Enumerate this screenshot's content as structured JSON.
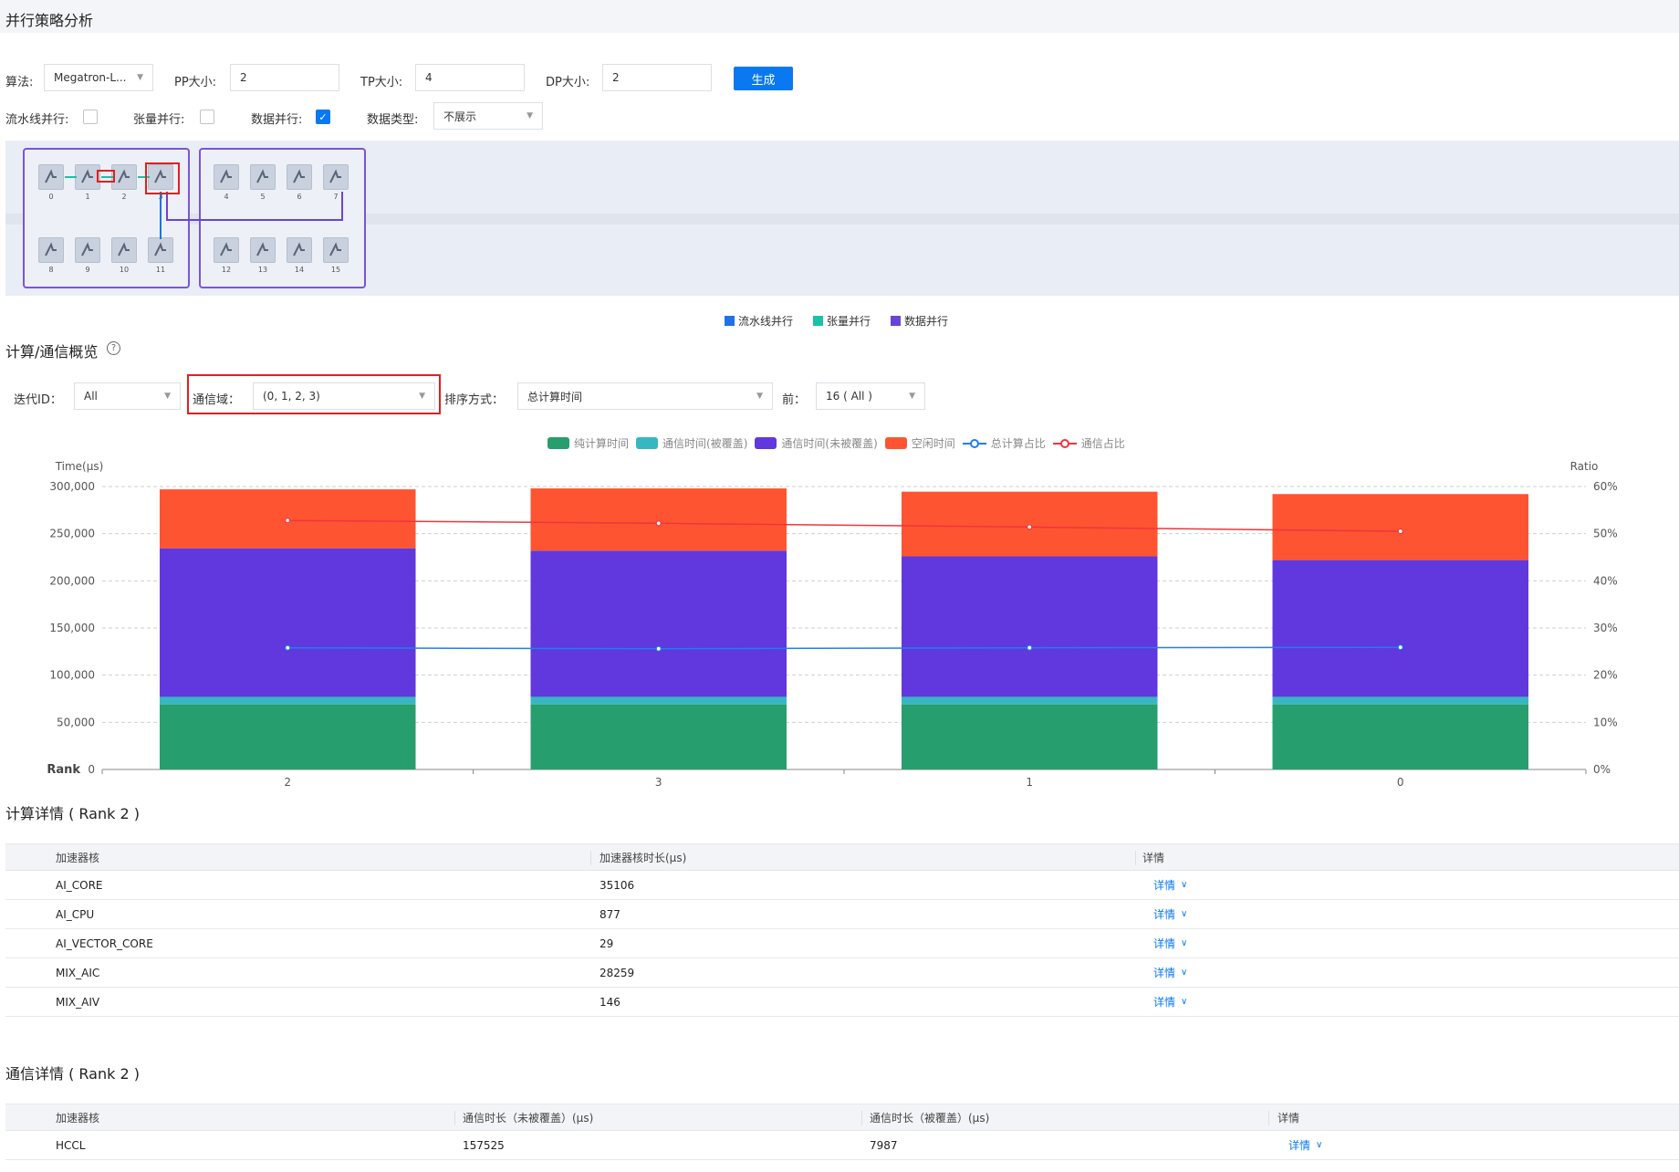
{
  "page": {
    "title": "并行策略分析"
  },
  "controls": {
    "algorithm_label": "算法:",
    "algorithm_value": "Megatron-L...",
    "pp_label": "PP大小:",
    "pp_value": "2",
    "tp_label": "TP大小:",
    "tp_value": "4",
    "dp_label": "DP大小:",
    "dp_value": "2",
    "generate_label": "生成",
    "pipeline_label": "流水线并行:",
    "pipeline_checked": false,
    "tensor_label": "张量并行:",
    "tensor_checked": false,
    "data_parallel_label": "数据并行:",
    "data_parallel_checked": true,
    "data_type_label": "数据类型:",
    "data_type_value": "不展示"
  },
  "topology": {
    "nodes_top": [
      "0",
      "1",
      "2",
      "3",
      "4",
      "5",
      "6",
      "7"
    ],
    "nodes_bottom": [
      "8",
      "9",
      "10",
      "11",
      "12",
      "13",
      "14",
      "15"
    ],
    "legend": [
      {
        "label": "流水线并行",
        "color": "#1f72e8"
      },
      {
        "label": "张量并行",
        "color": "#18c3a8"
      },
      {
        "label": "数据并行",
        "color": "#6a44d4"
      }
    ]
  },
  "overview": {
    "title": "计算/通信概览",
    "help_icon": "question-circle-icon",
    "iteration_label": "迭代ID：",
    "iteration_value": "All",
    "comm_domain_label": "通信域：",
    "comm_domain_value": "(0, 1, 2, 3)",
    "sort_label": "排序方式：",
    "sort_value": "总计算时间",
    "top_label": "前：",
    "top_value": "16 ( All )"
  },
  "chart_data": {
    "type": "bar",
    "stacked": true,
    "categories": [
      "2",
      "3",
      "1",
      "0"
    ],
    "ylabel": "Time(μs)",
    "y2label": "Ratio",
    "xlabel": "Rank",
    "ylim": [
      0,
      300000
    ],
    "y2lim": [
      0,
      60
    ],
    "yticks": [
      "0",
      "50,000",
      "100,000",
      "150,000",
      "200,000",
      "250,000",
      "300,000"
    ],
    "y2ticks": [
      "0%",
      "10%",
      "20%",
      "30%",
      "40%",
      "50%",
      "60%"
    ],
    "grid": true,
    "legend_position": "top-center",
    "series": [
      {
        "name": "纯计算时间",
        "color": "#279e6d",
        "values": [
          69000,
          69000,
          69000,
          69000
        ]
      },
      {
        "name": "通信时间(被覆盖)",
        "color": "#36b7c2",
        "values": [
          7987,
          8000,
          8000,
          8000
        ]
      },
      {
        "name": "通信时间(未被覆盖)",
        "color": "#6038dd",
        "values": [
          157525,
          155000,
          149000,
          145000
        ]
      },
      {
        "name": "空闲时间",
        "color": "#ff5431",
        "values": [
          62500,
          66000,
          68500,
          70000
        ]
      }
    ],
    "line_series": [
      {
        "name": "总计算占比",
        "color": "#1f7ef0",
        "values": [
          25.8,
          25.6,
          25.8,
          25.9
        ]
      },
      {
        "name": "通信占比",
        "color": "#f0343e",
        "values": [
          52.8,
          52.2,
          51.4,
          50.5
        ]
      }
    ]
  },
  "compute_detail": {
    "title": "计算详情 ( Rank 2 )",
    "headers": [
      "加速器核",
      "加速器核时长(μs)",
      "详情"
    ],
    "rows": [
      {
        "core": "AI_CORE",
        "duration": "35106",
        "detail": "详情"
      },
      {
        "core": "AI_CPU",
        "duration": "877",
        "detail": "详情"
      },
      {
        "core": "AI_VECTOR_CORE",
        "duration": "29",
        "detail": "详情"
      },
      {
        "core": "MIX_AIC",
        "duration": "28259",
        "detail": "详情"
      },
      {
        "core": "MIX_AIV",
        "duration": "146",
        "detail": "详情"
      }
    ]
  },
  "comm_detail": {
    "title": "通信详情 ( Rank 2 )",
    "headers": [
      "加速器核",
      "通信时长（未被覆盖）(μs)",
      "通信时长（被覆盖）(μs)",
      "详情"
    ],
    "rows": [
      {
        "core": "HCCL",
        "uncovered": "157525",
        "covered": "7987",
        "detail": "详情"
      }
    ]
  }
}
